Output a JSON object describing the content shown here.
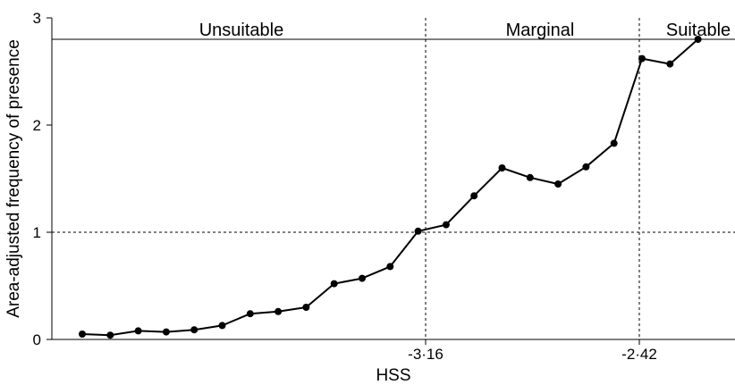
{
  "chart_data": {
    "type": "line",
    "xlabel": "HSS",
    "ylabel": "Area-adjusted frequency of presence",
    "ylim": [
      0,
      3
    ],
    "yticks": [
      "0",
      "1",
      "2",
      "3"
    ],
    "x_tick_labels": [
      "-3·16",
      "-2·42"
    ],
    "grid": false,
    "zone_labels": [
      "Unsuitable",
      "Marginal",
      "Suitable"
    ],
    "reference_lines": {
      "horizontal_y": [
        1,
        2.8
      ],
      "vertical_at_ticks": [
        "-3·16",
        "-2·42"
      ]
    },
    "series": [
      {
        "x_index": [
          1,
          2,
          3,
          4,
          5,
          6,
          7,
          8,
          9,
          10,
          11,
          12,
          13,
          14,
          15,
          16,
          17,
          18,
          19,
          20,
          21,
          22,
          23
        ],
        "values": [
          0.05,
          0.04,
          0.08,
          0.07,
          0.09,
          0.13,
          0.24,
          0.26,
          0.3,
          0.52,
          0.57,
          0.68,
          1.01,
          1.07,
          1.34,
          1.6,
          1.51,
          1.45,
          1.61,
          1.83,
          2.62,
          2.57,
          2.8
        ]
      }
    ],
    "color": "#000000"
  }
}
